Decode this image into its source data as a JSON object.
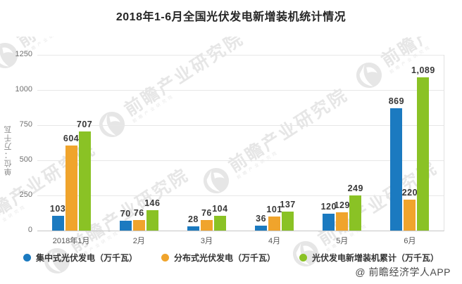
{
  "chart_data": {
    "type": "bar",
    "title": "2018年1-6月全国光伏发电新增装机统计情况",
    "ylabel": "单位：万千瓦",
    "categories": [
      "2018年1月",
      "2月",
      "3月",
      "4月",
      "5月",
      "6月"
    ],
    "series": [
      {
        "name": "集中式光伏发电（万千瓦）",
        "color": "#1b7ac0",
        "values": [
          103,
          70,
          28,
          36,
          120,
          869
        ],
        "labels": [
          "103",
          "70",
          "28",
          "36",
          "120",
          "869"
        ]
      },
      {
        "name": "分布式光伏发电（万千瓦）",
        "color": "#f0a42c",
        "values": [
          604,
          76,
          76,
          101,
          129,
          220
        ],
        "labels": [
          "604",
          "76",
          "76",
          "101",
          "129",
          "220"
        ]
      },
      {
        "name": "光伏发电新增装机累计（万千瓦）",
        "color": "#8ac225",
        "values": [
          707,
          146,
          104,
          137,
          249,
          1089
        ],
        "labels": [
          "707",
          "146",
          "104",
          "137",
          "249",
          "1,089"
        ]
      }
    ],
    "ylim": [
      0,
      1250
    ],
    "yticks": [
      0,
      250,
      500,
      750,
      1000,
      1250
    ],
    "grid": true,
    "legend_position": "bottom"
  },
  "watermark": {
    "brand_text": "前瞻产业研究院",
    "copyright": "@ 前瞻经济学人APP"
  }
}
